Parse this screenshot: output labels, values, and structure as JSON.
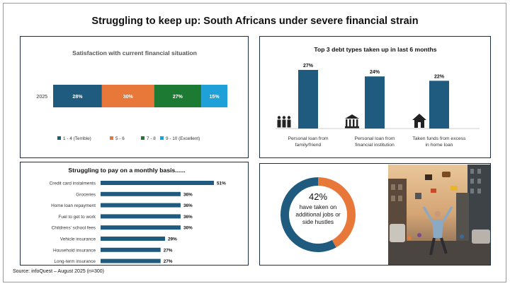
{
  "page": {
    "title": "Struggling to keep up:  South Africans under severe financial strain",
    "source": "Source:  infoQuest – August 2025 (n=300)"
  },
  "colors": {
    "panel_border": "#1b2e42",
    "dark_blue": "#1f5b7e",
    "orange": "#e8773a",
    "green": "#1d7a33",
    "light_blue": "#1fa0d8"
  },
  "chart_data": [
    {
      "type": "bar",
      "stacked": true,
      "orientation": "horizontal",
      "title": "Satisfaction with current financial situation",
      "categories": [
        "2025"
      ],
      "series": [
        {
          "name": "1 - 4  (Terrible)",
          "values": [
            28
          ],
          "color": "#1f5b7e"
        },
        {
          "name": "5 - 6",
          "values": [
            30
          ],
          "color": "#e8773a"
        },
        {
          "name": "7 - 8",
          "values": [
            27
          ],
          "color": "#1d7a33"
        },
        {
          "name": "9 - 10 (Excellent)",
          "values": [
            15
          ],
          "color": "#1fa0d8"
        }
      ],
      "xlim": [
        0,
        100
      ],
      "value_suffix": "%",
      "legend": "bottom",
      "grid": false
    },
    {
      "type": "bar",
      "orientation": "vertical",
      "title": "Top 3 debt types taken up in last 6 months",
      "categories": [
        "Personal loan from family/friend",
        "Personal loan from financial institution",
        "Taken funds from excess in home loan"
      ],
      "category_lines": [
        [
          "Personal loan from",
          "family/friend"
        ],
        [
          "Personal loan from",
          "financial institution"
        ],
        [
          "Taken funds from excess",
          "in home loan"
        ]
      ],
      "values": [
        27,
        24,
        22
      ],
      "icons": [
        "people-icon",
        "bank-icon",
        "house-icon"
      ],
      "value_suffix": "%",
      "ylim": [
        0,
        27
      ],
      "grid": false
    },
    {
      "type": "bar",
      "orientation": "horizontal",
      "title": "Struggling to pay on a monthly basis......",
      "categories": [
        "Credit card instalments",
        "Groceries",
        "Home loan repayment",
        "Fuel to get to work",
        "Childrens' school fees",
        "Vehicle insurance",
        "Household insurance",
        "Long-term insurance"
      ],
      "values": [
        51,
        36,
        36,
        36,
        36,
        29,
        27,
        27
      ],
      "value_suffix": "%",
      "xlim": [
        0,
        51
      ],
      "grid": false
    },
    {
      "type": "pie",
      "donut": true,
      "slices": [
        {
          "label": "have taken on additional jobs or side hustles",
          "value": 42,
          "color": "#e8773a"
        },
        {
          "value": 58,
          "color": "#1f5b7e"
        }
      ],
      "center_value": "42%",
      "center_lines": [
        "have taken on",
        "additional jobs or",
        "side hustles"
      ]
    }
  ]
}
